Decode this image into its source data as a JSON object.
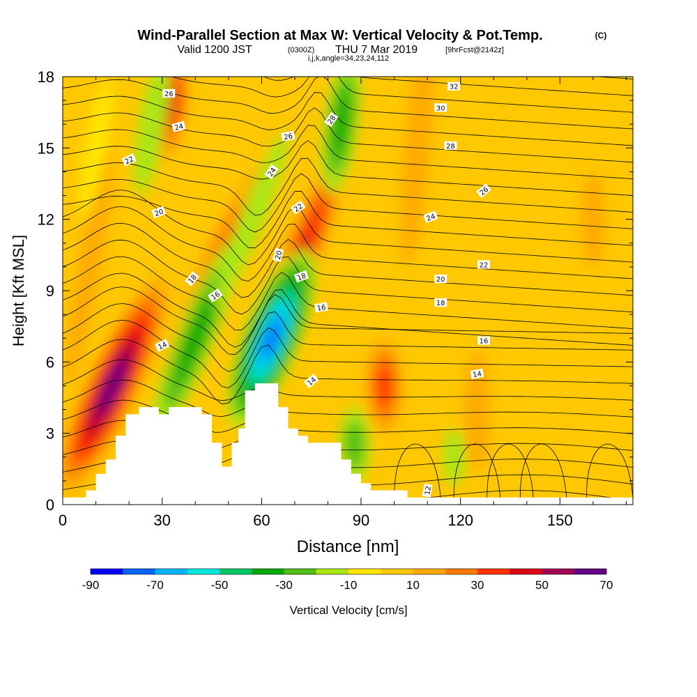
{
  "chart_data": {
    "type": "heatmap",
    "title_main": "Wind-Parallel Section at Max W: Vertical Velocity & Pot.Temp.",
    "title_tag": "(C)",
    "subtitle_valid": "Valid 1200 JST",
    "subtitle_utc": "(0300Z)",
    "subtitle_date": "THU 7 Mar 2019",
    "subtitle_fcst": "[9hrFcst@2142z]",
    "subtitle_params": "i,j,k,angle=34,23,24,112",
    "xlabel": "Distance [nm]",
    "ylabel": "Height [Kft MSL]",
    "xlim": [
      0,
      172
    ],
    "ylim": [
      0,
      18
    ],
    "x_ticks": [
      "0",
      "30",
      "60",
      "90",
      "120",
      "150"
    ],
    "y_ticks": [
      "0",
      "3",
      "6",
      "9",
      "12",
      "15",
      "18"
    ],
    "colorbar_label": "Vertical Velocity [cm/s]",
    "colorbar_ticks": [
      "-90",
      "-70",
      "-50",
      "-30",
      "-10",
      "10",
      "30",
      "50",
      "70"
    ],
    "colorbar_levels": [
      -90,
      -80,
      -70,
      -60,
      -50,
      -40,
      -30,
      -20,
      -10,
      0,
      10,
      20,
      30,
      40,
      50,
      60,
      70
    ],
    "colorbar_colors": [
      "#0000ff",
      "#0064ff",
      "#00b4ff",
      "#00e6dc",
      "#00c864",
      "#00aa00",
      "#50be14",
      "#aae614",
      "#ffe600",
      "#ffc800",
      "#ffaa00",
      "#ff7800",
      "#ff3200",
      "#dc0014",
      "#a00050",
      "#640082"
    ],
    "terrain_profile": [
      [
        0,
        0.3
      ],
      [
        7,
        0.3
      ],
      [
        7,
        0.6
      ],
      [
        10,
        0.6
      ],
      [
        10,
        1.3
      ],
      [
        13,
        1.3
      ],
      [
        13,
        1.9
      ],
      [
        16,
        1.9
      ],
      [
        16,
        2.9
      ],
      [
        19,
        2.9
      ],
      [
        19,
        3.8
      ],
      [
        23,
        3.8
      ],
      [
        23,
        4.1
      ],
      [
        29,
        4.1
      ],
      [
        29,
        3.8
      ],
      [
        32,
        3.8
      ],
      [
        32,
        4.1
      ],
      [
        42,
        4.1
      ],
      [
        42,
        3.8
      ],
      [
        45,
        3.8
      ],
      [
        45,
        2.6
      ],
      [
        48,
        2.6
      ],
      [
        48,
        1.6
      ],
      [
        51,
        1.6
      ],
      [
        51,
        2.6
      ],
      [
        53,
        2.6
      ],
      [
        53,
        3.2
      ],
      [
        55,
        3.2
      ],
      [
        55,
        4.8
      ],
      [
        58,
        4.8
      ],
      [
        58,
        5.1
      ],
      [
        65,
        5.1
      ],
      [
        65,
        4.1
      ],
      [
        68,
        4.1
      ],
      [
        68,
        3.2
      ],
      [
        71,
        3.2
      ],
      [
        71,
        2.9
      ],
      [
        74,
        2.9
      ],
      [
        74,
        2.6
      ],
      [
        84,
        2.6
      ],
      [
        84,
        1.9
      ],
      [
        87,
        1.9
      ],
      [
        87,
        1.3
      ],
      [
        90,
        1.3
      ],
      [
        90,
        0.9
      ],
      [
        93,
        0.9
      ],
      [
        93,
        0.6
      ],
      [
        104,
        0.6
      ],
      [
        104,
        0.3
      ],
      [
        172,
        0.3
      ]
    ],
    "updrafts": [
      {
        "x": 15,
        "y": 5,
        "w": 70,
        "angle": 25,
        "len": 5
      },
      {
        "x": 32,
        "y": 17,
        "w": 45,
        "angle": 5,
        "len": 2.5
      },
      {
        "x": 44,
        "y": 9,
        "w": 40,
        "angle": 22,
        "len": 5.5
      },
      {
        "x": 69,
        "y": 9.5,
        "w": 45,
        "angle": 22,
        "len": 6.5
      },
      {
        "x": 97,
        "y": 5,
        "w": 40,
        "angle": 0,
        "len": 2
      },
      {
        "x": 107,
        "y": 15,
        "w": 18,
        "angle": 5,
        "len": 5
      },
      {
        "x": 125,
        "y": 4,
        "w": 20,
        "angle": 0,
        "len": 2.5
      },
      {
        "x": 160,
        "y": 12,
        "w": 15,
        "angle": 0,
        "len": 2
      },
      {
        "x": 8,
        "y": 10,
        "w": 12,
        "angle": 10,
        "len": 5
      }
    ],
    "downdrafts": [
      {
        "x": 63,
        "y": 7,
        "w": -80,
        "angle": 22,
        "len": 4
      },
      {
        "x": 40,
        "y": 7,
        "w": -40,
        "angle": 22,
        "len": 4.5
      },
      {
        "x": 84,
        "y": 16,
        "w": -35,
        "angle": 8,
        "len": 3
      },
      {
        "x": 88,
        "y": 2.5,
        "w": -30,
        "angle": 0,
        "len": 1.6
      },
      {
        "x": 27,
        "y": 16,
        "w": -20,
        "angle": 10,
        "len": 3
      },
      {
        "x": 57,
        "y": 12,
        "w": -15,
        "angle": 22,
        "len": 4
      },
      {
        "x": 118,
        "y": 2,
        "w": -12,
        "angle": 0,
        "len": 1.2
      },
      {
        "x": 10,
        "y": 15,
        "w": -10,
        "angle": 10,
        "len": 3
      }
    ],
    "isentrope_labels": [
      {
        "text": "26",
        "x": 32,
        "y": 17.3,
        "rot": 0
      },
      {
        "text": "24",
        "x": 35,
        "y": 15.9,
        "rot": -15
      },
      {
        "text": "22",
        "x": 20,
        "y": 14.5,
        "rot": -25
      },
      {
        "text": "20",
        "x": 29,
        "y": 12.3,
        "rot": -20
      },
      {
        "text": "18",
        "x": 39,
        "y": 9.5,
        "rot": -50
      },
      {
        "text": "16",
        "x": 46,
        "y": 8.8,
        "rot": -35
      },
      {
        "text": "14",
        "x": 30,
        "y": 6.7,
        "rot": -25
      },
      {
        "text": "26",
        "x": 68,
        "y": 15.5,
        "rot": -10
      },
      {
        "text": "24",
        "x": 63,
        "y": 14,
        "rot": -55
      },
      {
        "text": "22",
        "x": 71,
        "y": 12.5,
        "rot": -35
      },
      {
        "text": "20",
        "x": 65,
        "y": 10.5,
        "rot": -75
      },
      {
        "text": "18",
        "x": 72,
        "y": 9.6,
        "rot": -20
      },
      {
        "text": "16",
        "x": 78,
        "y": 8.3,
        "rot": -10
      },
      {
        "text": "14",
        "x": 75,
        "y": 5.2,
        "rot": -40
      },
      {
        "text": "28",
        "x": 81,
        "y": 16.2,
        "rot": -55
      },
      {
        "text": "32",
        "x": 118,
        "y": 17.6,
        "rot": 0
      },
      {
        "text": "30",
        "x": 114,
        "y": 16.7,
        "rot": 0
      },
      {
        "text": "28",
        "x": 117,
        "y": 15.1,
        "rot": 0
      },
      {
        "text": "26",
        "x": 127,
        "y": 13.2,
        "rot": -40
      },
      {
        "text": "24",
        "x": 111,
        "y": 12.1,
        "rot": -20
      },
      {
        "text": "22",
        "x": 127,
        "y": 10.1,
        "rot": 0
      },
      {
        "text": "20",
        "x": 114,
        "y": 9.5,
        "rot": 0
      },
      {
        "text": "18",
        "x": 114,
        "y": 8.5,
        "rot": 0
      },
      {
        "text": "16",
        "x": 127,
        "y": 6.9,
        "rot": 0
      },
      {
        "text": "14",
        "x": 125,
        "y": 5.5,
        "rot": -10
      },
      {
        "text": "12",
        "x": 110,
        "y": 0.6,
        "rot": -80
      }
    ],
    "grid": false
  }
}
